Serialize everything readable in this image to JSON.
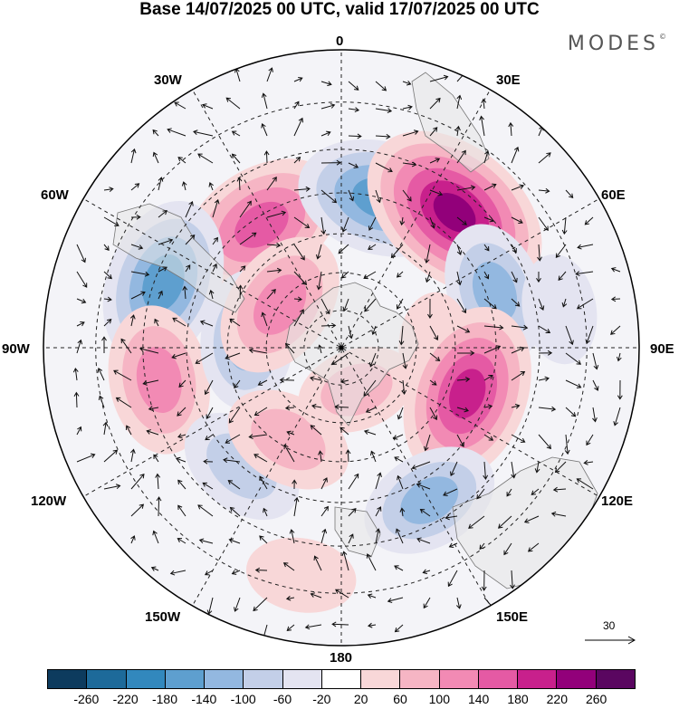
{
  "title": "Base 14/07/2025 00 UTC, valid 17/07/2025 00 UTC",
  "brand": "MODES",
  "brand_mark": "©",
  "longitude_labels": {
    "lon_0": "0",
    "lon_30e": "30E",
    "lon_60e": "60E",
    "lon_90e": "90E",
    "lon_120e": "120E",
    "lon_150e": "150E",
    "lon_180": "180",
    "lon_150w": "150W",
    "lon_120w": "120W",
    "lon_90w": "90W",
    "lon_60w": "60W",
    "lon_30w": "30W"
  },
  "vector_reference": {
    "value": "30"
  },
  "colorbar": {
    "colors": [
      "#0d3b5e",
      "#1d6a9a",
      "#3288bd",
      "#5e9fcf",
      "#93b8e0",
      "#c3cfe8",
      "#e4e4f1",
      "#ffffff",
      "#f8d7d8",
      "#f6b5c4",
      "#f28ab4",
      "#e55aa4",
      "#c8208c",
      "#92007a",
      "#5a0660"
    ],
    "tick_labels": [
      "-260",
      "-220",
      "-180",
      "-140",
      "-100",
      "-60",
      "-20",
      "20",
      "60",
      "100",
      "140",
      "180",
      "220",
      "260"
    ]
  },
  "map": {
    "projection": "south polar stereographic",
    "field_centers": [
      {
        "lon": -33,
        "lat": -52,
        "value": 180
      },
      {
        "lon": 15,
        "lat": -50,
        "value": -180
      },
      {
        "lon": 40,
        "lat": -45,
        "value": 240
      },
      {
        "lon": -70,
        "lat": -42,
        "value": -180
      },
      {
        "lon": -100,
        "lat": -43,
        "value": 140
      },
      {
        "lon": -85,
        "lat": -65,
        "value": -120
      },
      {
        "lon": 70,
        "lat": -48,
        "value": -120
      },
      {
        "lon": 90,
        "lat": -65,
        "value": 60
      },
      {
        "lon": 110,
        "lat": -55,
        "value": 200
      },
      {
        "lon": 150,
        "lat": -45,
        "value": -120
      },
      {
        "lon": -140,
        "lat": -50,
        "value": -100
      },
      {
        "lon": -150,
        "lat": -62,
        "value": 100
      },
      {
        "lon": 160,
        "lat": -78,
        "value": 80
      },
      {
        "lon": 80,
        "lat": -35,
        "value": -60
      },
      {
        "lon": -170,
        "lat": -33,
        "value": 60
      },
      {
        "lon": -55,
        "lat": -70,
        "value": 140
      }
    ]
  }
}
